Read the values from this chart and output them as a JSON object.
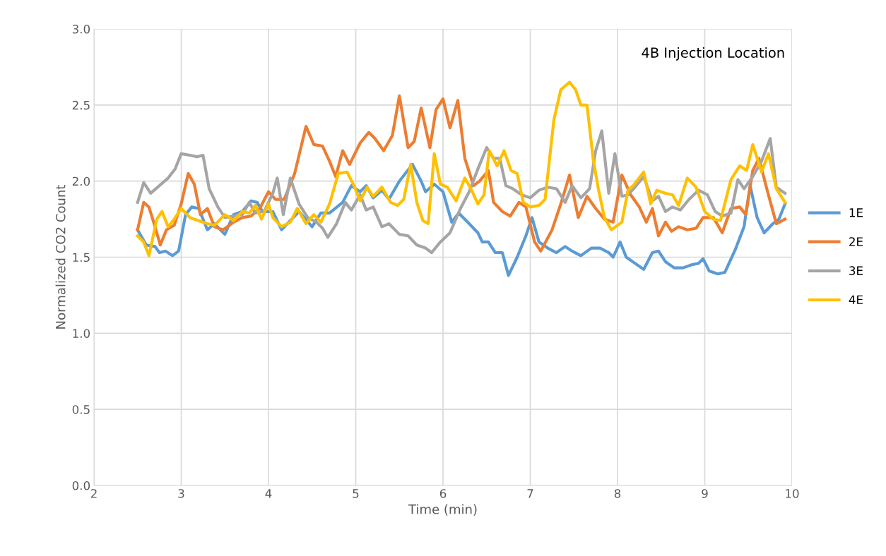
{
  "chart_data": {
    "type": "line",
    "title": "4B Injection Location",
    "xlabel": "Time (min)",
    "ylabel": "Normalized CO2 Count",
    "xlim": [
      2,
      10
    ],
    "xticks": [
      2,
      3,
      4,
      5,
      6,
      7,
      8,
      9,
      10
    ],
    "ylim": [
      0,
      3
    ],
    "yticks": [
      {
        "value": 0,
        "label": "0.0"
      },
      {
        "value": 0.5,
        "label": "0.5"
      },
      {
        "value": 1,
        "label": "1.0"
      },
      {
        "value": 1.5,
        "label": "1.5"
      },
      {
        "value": 2,
        "label": "2.0"
      },
      {
        "value": 2.5,
        "label": "2.5"
      },
      {
        "value": 3,
        "label": "3.0"
      }
    ],
    "grid": true,
    "legend": "right",
    "marker": "none",
    "line_style": "solid",
    "series": [
      {
        "name": "1E",
        "color": "#5b9bd5",
        "x": [
          2.5,
          2.6,
          2.7,
          2.75,
          2.82,
          2.9,
          2.97,
          3.05,
          3.12,
          3.2,
          3.3,
          3.38,
          3.5,
          3.6,
          3.7,
          3.8,
          3.87,
          3.93,
          4.05,
          4.15,
          4.25,
          4.35,
          4.5,
          4.6,
          4.7,
          4.85,
          4.95,
          5.05,
          5.12,
          5.2,
          5.3,
          5.38,
          5.5,
          5.65,
          5.75,
          5.8,
          5.9,
          6.0,
          6.1,
          6.18,
          6.3,
          6.4,
          6.45,
          6.52,
          6.6,
          6.68,
          6.75,
          6.85,
          6.95,
          7.02,
          7.1,
          7.2,
          7.3,
          7.4,
          7.48,
          7.58,
          7.7,
          7.8,
          7.9,
          7.95,
          8.03,
          8.1,
          8.2,
          8.3,
          8.4,
          8.47,
          8.55,
          8.65,
          8.75,
          8.85,
          8.93,
          8.98,
          9.05,
          9.15,
          9.23,
          9.35,
          9.45,
          9.52,
          9.6,
          9.68,
          9.78,
          9.85,
          9.92
        ],
        "values": [
          1.68,
          1.58,
          1.57,
          1.53,
          1.54,
          1.51,
          1.54,
          1.78,
          1.83,
          1.82,
          1.68,
          1.72,
          1.65,
          1.78,
          1.8,
          1.87,
          1.86,
          1.8,
          1.8,
          1.68,
          1.74,
          1.8,
          1.7,
          1.79,
          1.79,
          1.86,
          1.97,
          1.93,
          1.97,
          1.89,
          1.94,
          1.88,
          2.0,
          2.11,
          2.0,
          1.93,
          1.98,
          1.93,
          1.73,
          1.79,
          1.72,
          1.66,
          1.6,
          1.6,
          1.53,
          1.53,
          1.38,
          1.5,
          1.64,
          1.76,
          1.6,
          1.56,
          1.53,
          1.57,
          1.54,
          1.51,
          1.56,
          1.56,
          1.53,
          1.5,
          1.6,
          1.5,
          1.46,
          1.42,
          1.53,
          1.54,
          1.47,
          1.43,
          1.43,
          1.45,
          1.46,
          1.49,
          1.41,
          1.39,
          1.4,
          1.55,
          1.7,
          1.97,
          1.76,
          1.66,
          1.72,
          1.75,
          1.85
        ]
      },
      {
        "name": "2E",
        "color": "#ed7d31",
        "x": [
          2.5,
          2.57,
          2.63,
          2.7,
          2.76,
          2.83,
          2.92,
          3.0,
          3.08,
          3.15,
          3.22,
          3.3,
          3.38,
          3.48,
          3.6,
          3.7,
          3.8,
          3.9,
          4.0,
          4.08,
          4.18,
          4.3,
          4.43,
          4.52,
          4.62,
          4.7,
          4.77,
          4.85,
          4.93,
          5.05,
          5.15,
          5.22,
          5.32,
          5.42,
          5.5,
          5.6,
          5.67,
          5.75,
          5.85,
          5.92,
          6.0,
          6.08,
          6.17,
          6.25,
          6.35,
          6.42,
          6.52,
          6.58,
          6.68,
          6.77,
          6.87,
          6.95,
          7.05,
          7.12,
          7.25,
          7.35,
          7.45,
          7.55,
          7.65,
          7.75,
          7.85,
          7.95,
          8.05,
          8.15,
          8.25,
          8.33,
          8.4,
          8.47,
          8.55,
          8.62,
          8.7,
          8.8,
          8.9,
          8.98,
          9.1,
          9.2,
          9.3,
          9.4,
          9.47,
          9.55,
          9.62,
          9.72,
          9.82,
          9.92
        ],
        "values": [
          1.68,
          1.86,
          1.83,
          1.7,
          1.58,
          1.68,
          1.71,
          1.85,
          2.05,
          1.98,
          1.78,
          1.82,
          1.7,
          1.68,
          1.73,
          1.76,
          1.77,
          1.82,
          1.93,
          1.88,
          1.88,
          2.05,
          2.36,
          2.24,
          2.23,
          2.13,
          2.03,
          2.2,
          2.11,
          2.25,
          2.32,
          2.28,
          2.2,
          2.3,
          2.56,
          2.22,
          2.26,
          2.48,
          2.22,
          2.47,
          2.54,
          2.35,
          2.53,
          2.15,
          1.97,
          2.0,
          2.07,
          1.86,
          1.8,
          1.77,
          1.86,
          1.83,
          1.6,
          1.54,
          1.68,
          1.85,
          2.04,
          1.76,
          1.9,
          1.82,
          1.75,
          1.73,
          2.04,
          1.91,
          1.83,
          1.73,
          1.82,
          1.64,
          1.73,
          1.67,
          1.7,
          1.68,
          1.69,
          1.76,
          1.76,
          1.66,
          1.82,
          1.83,
          1.78,
          2.07,
          2.15,
          1.93,
          1.72,
          1.75
        ]
      },
      {
        "name": "3E",
        "color": "#a5a5a5",
        "x": [
          2.5,
          2.57,
          2.65,
          2.75,
          2.85,
          2.93,
          3.0,
          3.1,
          3.18,
          3.25,
          3.32,
          3.42,
          3.5,
          3.6,
          3.7,
          3.78,
          3.85,
          3.95,
          4.05,
          4.1,
          4.17,
          4.25,
          4.35,
          4.45,
          4.55,
          4.62,
          4.68,
          4.78,
          4.88,
          4.95,
          5.05,
          5.12,
          5.2,
          5.3,
          5.38,
          5.5,
          5.6,
          5.7,
          5.8,
          5.87,
          5.97,
          6.08,
          6.2,
          6.3,
          6.4,
          6.5,
          6.58,
          6.65,
          6.72,
          6.8,
          6.9,
          7.0,
          7.1,
          7.2,
          7.3,
          7.4,
          7.48,
          7.58,
          7.68,
          7.75,
          7.82,
          7.9,
          7.97,
          8.05,
          8.12,
          8.2,
          8.3,
          8.4,
          8.47,
          8.55,
          8.63,
          8.72,
          8.82,
          8.93,
          9.03,
          9.12,
          9.2,
          9.3,
          9.38,
          9.45,
          9.55,
          9.65,
          9.75,
          9.82,
          9.92
        ],
        "values": [
          1.86,
          1.99,
          1.92,
          1.97,
          2.02,
          2.08,
          2.18,
          2.17,
          2.16,
          2.17,
          1.95,
          1.83,
          1.76,
          1.77,
          1.78,
          1.86,
          1.79,
          1.8,
          1.92,
          2.02,
          1.78,
          2.02,
          1.85,
          1.76,
          1.73,
          1.69,
          1.63,
          1.72,
          1.86,
          1.81,
          1.91,
          1.81,
          1.83,
          1.7,
          1.72,
          1.65,
          1.64,
          1.58,
          1.56,
          1.53,
          1.6,
          1.66,
          1.82,
          1.93,
          2.08,
          2.22,
          2.15,
          2.15,
          1.97,
          1.95,
          1.91,
          1.89,
          1.94,
          1.96,
          1.95,
          1.86,
          1.97,
          1.89,
          1.95,
          2.2,
          2.33,
          1.92,
          2.18,
          1.9,
          1.91,
          1.96,
          2.03,
          1.87,
          1.9,
          1.8,
          1.83,
          1.81,
          1.88,
          1.94,
          1.91,
          1.8,
          1.77,
          1.79,
          2.01,
          1.95,
          2.03,
          2.13,
          2.28,
          1.96,
          1.92
        ]
      },
      {
        "name": "4E",
        "color": "#ffc000",
        "x": [
          2.5,
          2.57,
          2.63,
          2.72,
          2.78,
          2.85,
          2.92,
          3.0,
          3.1,
          3.2,
          3.3,
          3.38,
          3.5,
          3.6,
          3.7,
          3.78,
          3.85,
          3.92,
          4.0,
          4.05,
          4.15,
          4.25,
          4.33,
          4.43,
          4.52,
          4.6,
          4.7,
          4.8,
          4.9,
          4.98,
          5.05,
          5.13,
          5.2,
          5.3,
          5.4,
          5.48,
          5.55,
          5.63,
          5.7,
          5.77,
          5.83,
          5.9,
          5.97,
          6.05,
          6.15,
          6.25,
          6.32,
          6.4,
          6.47,
          6.53,
          6.62,
          6.7,
          6.78,
          6.85,
          6.92,
          7.0,
          7.1,
          7.17,
          7.27,
          7.35,
          7.45,
          7.52,
          7.58,
          7.65,
          7.72,
          7.78,
          7.85,
          7.93,
          8.05,
          8.12,
          8.18,
          8.3,
          8.38,
          8.45,
          8.55,
          8.63,
          8.7,
          8.8,
          8.9,
          9.0,
          9.1,
          9.18,
          9.3,
          9.4,
          9.48,
          9.55,
          9.65,
          9.73,
          9.82,
          9.92
        ],
        "values": [
          1.64,
          1.6,
          1.51,
          1.75,
          1.8,
          1.7,
          1.75,
          1.82,
          1.76,
          1.74,
          1.72,
          1.71,
          1.78,
          1.74,
          1.8,
          1.79,
          1.84,
          1.75,
          1.85,
          1.76,
          1.7,
          1.73,
          1.82,
          1.72,
          1.78,
          1.73,
          1.85,
          2.05,
          2.06,
          1.97,
          1.87,
          1.96,
          1.9,
          1.96,
          1.86,
          1.84,
          1.88,
          2.11,
          1.86,
          1.74,
          1.72,
          2.18,
          1.98,
          1.96,
          1.87,
          2.02,
          1.95,
          1.85,
          1.91,
          2.2,
          2.1,
          2.2,
          2.07,
          2.05,
          1.86,
          1.83,
          1.84,
          1.88,
          2.4,
          2.6,
          2.65,
          2.6,
          2.5,
          2.5,
          2.15,
          1.95,
          1.76,
          1.68,
          1.73,
          1.94,
          1.97,
          2.06,
          1.85,
          1.94,
          1.92,
          1.91,
          1.84,
          2.02,
          1.96,
          1.8,
          1.75,
          1.74,
          2.01,
          2.1,
          2.07,
          2.24,
          2.06,
          2.18,
          1.95,
          1.86
        ]
      }
    ]
  }
}
